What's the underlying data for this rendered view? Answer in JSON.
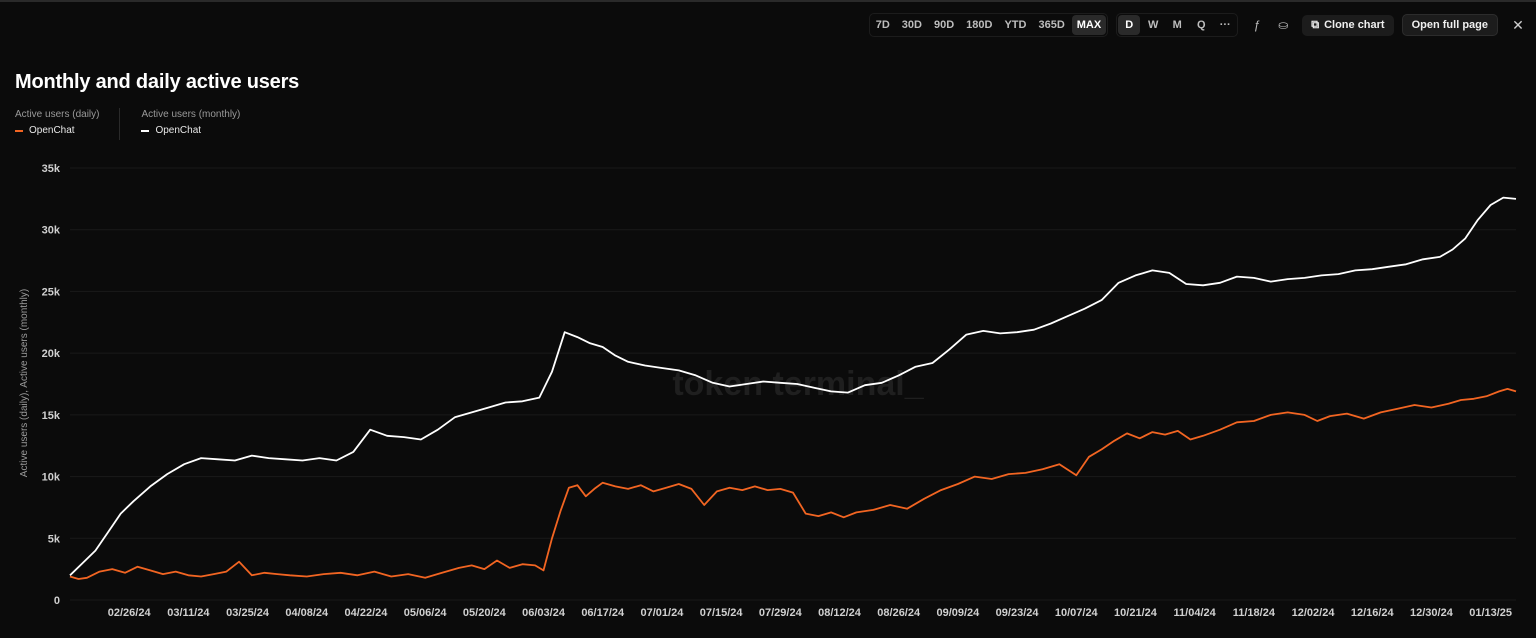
{
  "toolbar": {
    "ranges": [
      "7D",
      "30D",
      "90D",
      "180D",
      "YTD",
      "365D",
      "MAX"
    ],
    "active_range": "MAX",
    "frequencies": [
      "D",
      "W",
      "M",
      "Q"
    ],
    "active_frequency": "D",
    "more": "···",
    "formula_icon": "ƒ",
    "chart_type_icon": "⛀",
    "clone_icon": "⧉",
    "clone_label": "Clone chart",
    "open_label": "Open full page",
    "close_icon": "✕"
  },
  "watermark": "token terminal_",
  "colors": {
    "daily": "#f26522",
    "monthly": "#ffffff",
    "background": "#0b0b0b"
  },
  "chart_data": {
    "type": "line",
    "title": "Monthly and daily active users",
    "ylabel": "Active users (daily), Active users (monthly)",
    "xlabel": "",
    "ylim": [
      0,
      35000
    ],
    "yticks": [
      0,
      5000,
      10000,
      15000,
      20000,
      25000,
      30000,
      35000
    ],
    "ytick_labels": [
      "0",
      "5k",
      "10k",
      "15k",
      "20k",
      "25k",
      "30k",
      "35k"
    ],
    "x_range": [
      "2024-02-12",
      "2025-01-19"
    ],
    "xtick_dates": [
      "2024-02-26",
      "2024-03-11",
      "2024-03-25",
      "2024-04-08",
      "2024-04-22",
      "2024-05-06",
      "2024-05-20",
      "2024-06-03",
      "2024-06-17",
      "2024-07-01",
      "2024-07-15",
      "2024-07-29",
      "2024-08-12",
      "2024-08-26",
      "2024-09-09",
      "2024-09-23",
      "2024-10-07",
      "2024-10-21",
      "2024-11-04",
      "2024-11-18",
      "2024-12-02",
      "2024-12-16",
      "2024-12-30",
      "2025-01-13"
    ],
    "xtick_labels": [
      "02/26/24",
      "03/11/24",
      "03/25/24",
      "04/08/24",
      "04/22/24",
      "05/06/24",
      "05/20/24",
      "06/03/24",
      "06/17/24",
      "07/01/24",
      "07/15/24",
      "07/29/24",
      "08/12/24",
      "08/26/24",
      "09/09/24",
      "09/23/24",
      "10/07/24",
      "10/21/24",
      "11/04/24",
      "11/18/24",
      "12/02/24",
      "12/16/24",
      "12/30/24",
      "01/13/25"
    ],
    "legend": [
      {
        "group": "Active users (daily)",
        "name": "OpenChat"
      },
      {
        "group": "Active users (monthly)",
        "name": "OpenChat"
      }
    ],
    "series": [
      {
        "name": "OpenChat",
        "metric": "Active users (daily)",
        "color": "#f26522",
        "x": [
          "2024-02-12",
          "2024-02-14",
          "2024-02-16",
          "2024-02-19",
          "2024-02-22",
          "2024-02-25",
          "2024-02-28",
          "2024-03-02",
          "2024-03-05",
          "2024-03-08",
          "2024-03-11",
          "2024-03-14",
          "2024-03-17",
          "2024-03-20",
          "2024-03-23",
          "2024-03-26",
          "2024-03-29",
          "2024-04-01",
          "2024-04-04",
          "2024-04-08",
          "2024-04-12",
          "2024-04-16",
          "2024-04-20",
          "2024-04-24",
          "2024-04-28",
          "2024-05-02",
          "2024-05-06",
          "2024-05-10",
          "2024-05-14",
          "2024-05-17",
          "2024-05-20",
          "2024-05-23",
          "2024-05-26",
          "2024-05-29",
          "2024-06-01",
          "2024-06-03",
          "2024-06-05",
          "2024-06-07",
          "2024-06-09",
          "2024-06-11",
          "2024-06-13",
          "2024-06-15",
          "2024-06-17",
          "2024-06-20",
          "2024-06-23",
          "2024-06-26",
          "2024-06-29",
          "2024-07-02",
          "2024-07-05",
          "2024-07-08",
          "2024-07-11",
          "2024-07-14",
          "2024-07-17",
          "2024-07-20",
          "2024-07-23",
          "2024-07-26",
          "2024-07-29",
          "2024-08-01",
          "2024-08-04",
          "2024-08-07",
          "2024-08-10",
          "2024-08-13",
          "2024-08-16",
          "2024-08-20",
          "2024-08-24",
          "2024-08-28",
          "2024-09-01",
          "2024-09-05",
          "2024-09-09",
          "2024-09-13",
          "2024-09-17",
          "2024-09-21",
          "2024-09-25",
          "2024-09-29",
          "2024-10-03",
          "2024-10-07",
          "2024-10-10",
          "2024-10-13",
          "2024-10-16",
          "2024-10-19",
          "2024-10-22",
          "2024-10-25",
          "2024-10-28",
          "2024-10-31",
          "2024-11-03",
          "2024-11-06",
          "2024-11-10",
          "2024-11-14",
          "2024-11-18",
          "2024-11-22",
          "2024-11-26",
          "2024-11-30",
          "2024-12-03",
          "2024-12-06",
          "2024-12-10",
          "2024-12-14",
          "2024-12-18",
          "2024-12-22",
          "2024-12-26",
          "2024-12-30",
          "2025-01-03",
          "2025-01-06",
          "2025-01-09",
          "2025-01-12",
          "2025-01-15",
          "2025-01-17",
          "2025-01-19"
        ],
        "values": [
          1900,
          1700,
          1800,
          2300,
          2500,
          2200,
          2700,
          2400,
          2100,
          2300,
          2000,
          1900,
          2100,
          2300,
          3100,
          2000,
          2200,
          2100,
          2000,
          1900,
          2100,
          2200,
          2000,
          2300,
          1900,
          2100,
          1800,
          2200,
          2600,
          2800,
          2500,
          3200,
          2600,
          2900,
          2800,
          2400,
          5000,
          7200,
          9100,
          9300,
          8400,
          9000,
          9500,
          9200,
          9000,
          9300,
          8800,
          9100,
          9400,
          9000,
          7700,
          8800,
          9100,
          8900,
          9200,
          8900,
          9000,
          8700,
          7000,
          6800,
          7100,
          6700,
          7100,
          7300,
          7700,
          7400,
          8200,
          8900,
          9400,
          10000,
          9800,
          10200,
          10300,
          10600,
          11000,
          10100,
          11600,
          12200,
          12900,
          13500,
          13100,
          13600,
          13400,
          13700,
          13000,
          13300,
          13800,
          14400,
          14500,
          15000,
          15200,
          15000,
          14500,
          14900,
          15100,
          14700,
          15200,
          15500,
          15800,
          15600,
          15900,
          16200,
          16300,
          16500,
          16900,
          17100,
          16900
        ]
      },
      {
        "name": "OpenChat",
        "metric": "Active users (monthly)",
        "color": "#ffffff",
        "x": [
          "2024-02-12",
          "2024-02-15",
          "2024-02-18",
          "2024-02-21",
          "2024-02-24",
          "2024-02-27",
          "2024-03-02",
          "2024-03-06",
          "2024-03-10",
          "2024-03-14",
          "2024-03-18",
          "2024-03-22",
          "2024-03-26",
          "2024-03-30",
          "2024-04-03",
          "2024-04-07",
          "2024-04-11",
          "2024-04-15",
          "2024-04-19",
          "2024-04-23",
          "2024-04-27",
          "2024-05-01",
          "2024-05-05",
          "2024-05-09",
          "2024-05-13",
          "2024-05-17",
          "2024-05-21",
          "2024-05-25",
          "2024-05-29",
          "2024-06-02",
          "2024-06-05",
          "2024-06-08",
          "2024-06-11",
          "2024-06-14",
          "2024-06-17",
          "2024-06-20",
          "2024-06-23",
          "2024-06-27",
          "2024-07-01",
          "2024-07-05",
          "2024-07-09",
          "2024-07-13",
          "2024-07-17",
          "2024-07-21",
          "2024-07-25",
          "2024-07-29",
          "2024-08-02",
          "2024-08-06",
          "2024-08-10",
          "2024-08-14",
          "2024-08-18",
          "2024-08-22",
          "2024-08-26",
          "2024-08-30",
          "2024-09-03",
          "2024-09-07",
          "2024-09-11",
          "2024-09-15",
          "2024-09-19",
          "2024-09-23",
          "2024-09-27",
          "2024-10-01",
          "2024-10-05",
          "2024-10-09",
          "2024-10-13",
          "2024-10-17",
          "2024-10-21",
          "2024-10-25",
          "2024-10-29",
          "2024-11-02",
          "2024-11-06",
          "2024-11-10",
          "2024-11-14",
          "2024-11-18",
          "2024-11-22",
          "2024-11-26",
          "2024-11-30",
          "2024-12-04",
          "2024-12-08",
          "2024-12-12",
          "2024-12-16",
          "2024-12-20",
          "2024-12-24",
          "2024-12-28",
          "2025-01-01",
          "2025-01-04",
          "2025-01-07",
          "2025-01-10",
          "2025-01-13",
          "2025-01-16",
          "2025-01-19"
        ],
        "values": [
          2000,
          3000,
          4000,
          5500,
          7000,
          8000,
          9200,
          10200,
          11000,
          11500,
          11400,
          11300,
          11700,
          11500,
          11400,
          11300,
          11500,
          11300,
          12000,
          13800,
          13300,
          13200,
          13000,
          13800,
          14800,
          15200,
          15600,
          16000,
          16100,
          16400,
          18500,
          21700,
          21300,
          20800,
          20500,
          19800,
          19300,
          19000,
          18800,
          18600,
          18200,
          17600,
          17300,
          17500,
          17700,
          17600,
          17500,
          17200,
          16900,
          16800,
          17400,
          17600,
          18200,
          18900,
          19200,
          20300,
          21500,
          21800,
          21600,
          21700,
          21900,
          22400,
          23000,
          23600,
          24300,
          25700,
          26300,
          26700,
          26500,
          25600,
          25500,
          25700,
          26200,
          26100,
          25800,
          26000,
          26100,
          26300,
          26400,
          26700,
          26800,
          27000,
          27200,
          27600,
          27800,
          28400,
          29300,
          30800,
          32000,
          32600,
          32500
        ]
      }
    ]
  }
}
